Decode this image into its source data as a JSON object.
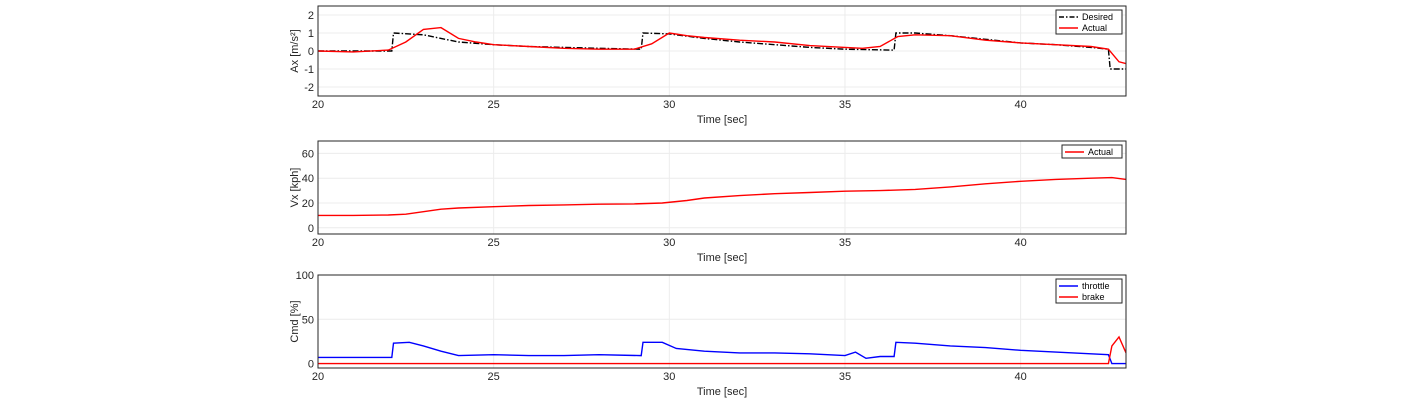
{
  "chart_data": [
    {
      "type": "line",
      "xlabel": "Time [sec]",
      "ylabel": "Ax [m/s²]",
      "xlim": [
        20,
        43
      ],
      "ylim": [
        -2.5,
        2.5
      ],
      "xticks": [
        20,
        25,
        30,
        35,
        40
      ],
      "yticks": [
        -2,
        -1,
        0,
        1,
        2
      ],
      "grid": true,
      "legend_position": "top-right",
      "series": [
        {
          "name": "Desired",
          "color": "#000000",
          "style": "dash-dot",
          "x": [
            20,
            22.1,
            22.15,
            23,
            24,
            25,
            26,
            27,
            28,
            29.2,
            29.25,
            30,
            31,
            32,
            33,
            34,
            35,
            36.4,
            36.45,
            37,
            38,
            39,
            40,
            41,
            42,
            42.5,
            42.55,
            43
          ],
          "y": [
            0,
            0,
            1.0,
            0.9,
            0.5,
            0.35,
            0.25,
            0.2,
            0.15,
            0.1,
            1.0,
            0.95,
            0.7,
            0.5,
            0.35,
            0.2,
            0.1,
            0.05,
            1.0,
            1.0,
            0.85,
            0.65,
            0.45,
            0.35,
            0.2,
            0.1,
            -1.0,
            -1.0
          ]
        },
        {
          "name": "Actual",
          "color": "#ff0000",
          "style": "solid",
          "x": [
            20,
            21,
            22,
            22.5,
            23,
            23.5,
            24,
            24.5,
            25,
            26,
            27,
            28,
            29,
            29.5,
            30,
            30.5,
            31,
            32,
            33,
            34,
            35,
            35.5,
            36,
            36.5,
            37,
            38,
            39,
            40,
            41,
            42,
            42.5,
            42.8,
            43
          ],
          "y": [
            0,
            -0.05,
            0.05,
            0.5,
            1.2,
            1.3,
            0.7,
            0.5,
            0.35,
            0.25,
            0.15,
            0.1,
            0.1,
            0.4,
            1.0,
            0.85,
            0.75,
            0.6,
            0.5,
            0.3,
            0.2,
            0.15,
            0.25,
            0.8,
            0.9,
            0.85,
            0.6,
            0.45,
            0.35,
            0.25,
            0.1,
            -0.6,
            -0.7
          ]
        }
      ]
    },
    {
      "type": "line",
      "xlabel": "Time [sec]",
      "ylabel": "Vx [kph]",
      "xlim": [
        20,
        43
      ],
      "ylim": [
        -5,
        70
      ],
      "xticks": [
        20,
        25,
        30,
        35,
        40
      ],
      "yticks": [
        0,
        20,
        40,
        60
      ],
      "grid": true,
      "legend_position": "top-right",
      "series": [
        {
          "name": "Actual",
          "color": "#ff0000",
          "style": "solid",
          "x": [
            20,
            21,
            22,
            22.5,
            23,
            23.5,
            24,
            25,
            26,
            27,
            28,
            29,
            29.8,
            30.5,
            31,
            32,
            33,
            34,
            35,
            36,
            37,
            38,
            39,
            40,
            41,
            42,
            42.6,
            43
          ],
          "y": [
            10,
            10,
            10.3,
            11,
            13,
            15,
            16,
            17,
            18,
            18.5,
            19,
            19.3,
            20,
            22,
            24,
            26,
            27.5,
            28.5,
            29.5,
            30,
            31,
            33,
            35.5,
            37.5,
            39,
            40,
            40.5,
            39
          ]
        }
      ]
    },
    {
      "type": "line",
      "xlabel": "Time [sec]",
      "ylabel": "Cmd [%]",
      "xlim": [
        20,
        43
      ],
      "ylim": [
        -5,
        100
      ],
      "xticks": [
        20,
        25,
        30,
        35,
        40
      ],
      "yticks": [
        0,
        50,
        100
      ],
      "grid": true,
      "legend_position": "top-right",
      "series": [
        {
          "name": "throttle",
          "color": "#0000ff",
          "style": "solid",
          "x": [
            20,
            21,
            22.1,
            22.15,
            22.6,
            23,
            23.5,
            24,
            25,
            26,
            27,
            28,
            29.2,
            29.25,
            29.8,
            30.2,
            31,
            32,
            33,
            34,
            35,
            35.3,
            35.6,
            36,
            36.4,
            36.45,
            37,
            38,
            39,
            40,
            41,
            42,
            42.5,
            42.6,
            43
          ],
          "y": [
            7,
            7,
            7,
            23,
            24,
            20,
            14,
            9,
            10,
            9,
            9,
            10,
            9,
            24,
            24,
            17,
            14,
            12,
            12,
            11,
            9,
            13,
            6,
            8,
            8,
            24,
            23,
            20,
            18,
            15,
            13,
            11,
            10,
            0,
            0
          ]
        },
        {
          "name": "brake",
          "color": "#ff0000",
          "style": "solid",
          "x": [
            20,
            42.5,
            42.6,
            42.8,
            43
          ],
          "y": [
            0,
            0,
            20,
            30,
            12
          ]
        }
      ]
    }
  ]
}
